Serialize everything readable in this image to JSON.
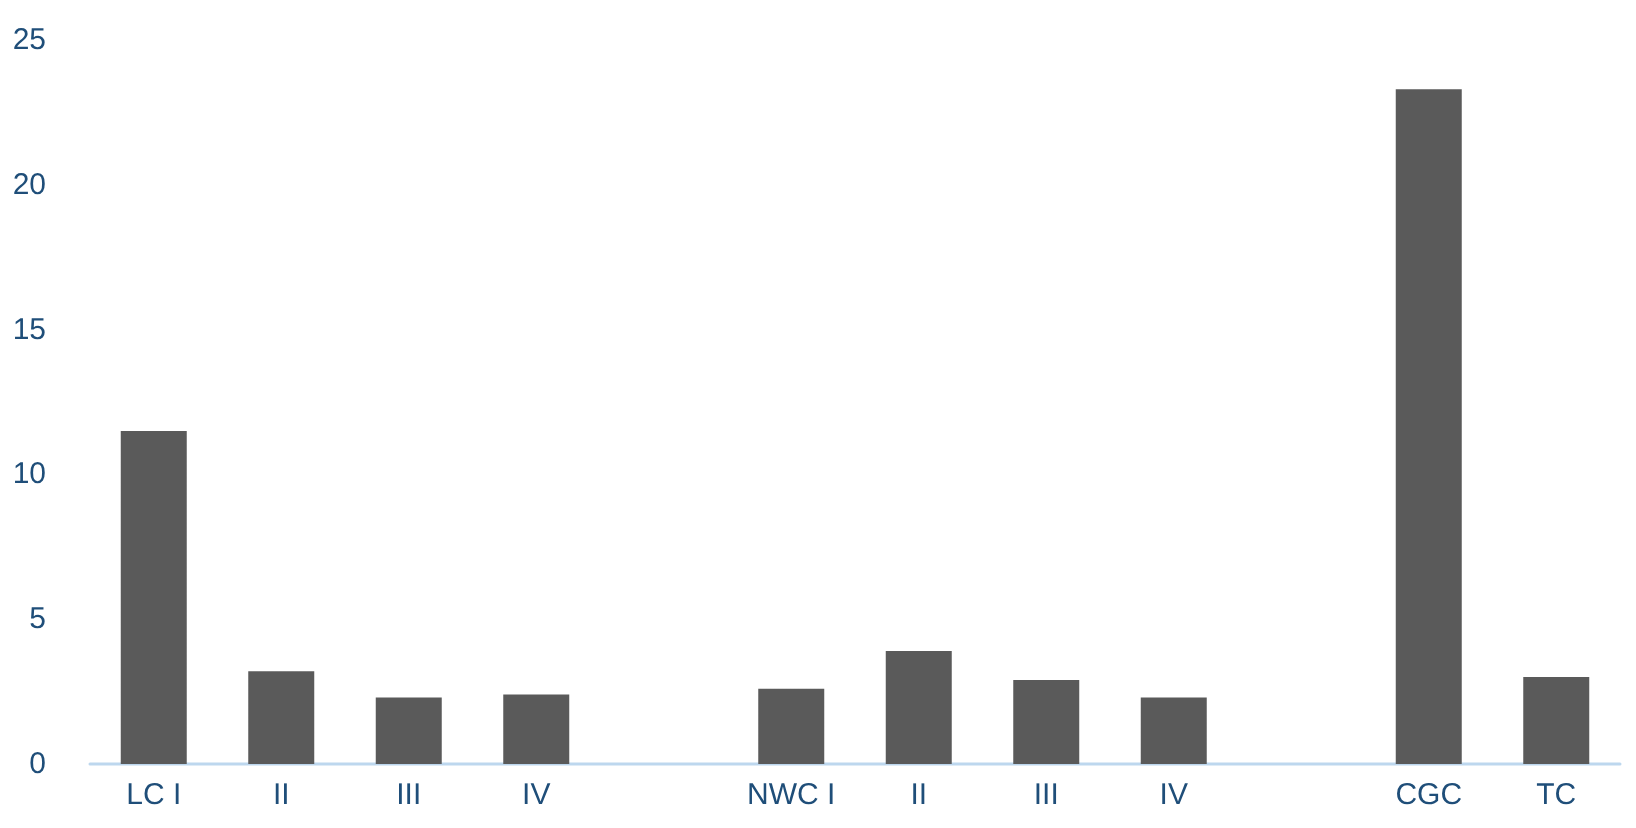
{
  "chart_data": {
    "type": "bar",
    "categories": [
      "LC I",
      "II",
      "III",
      "IV",
      null,
      "NWC I",
      "II",
      "III",
      "IV",
      null,
      "CGC",
      "TC"
    ],
    "values": [
      11.5,
      3.2,
      2.3,
      2.4,
      null,
      2.6,
      3.9,
      2.9,
      2.3,
      null,
      23.3,
      3.0
    ],
    "color": "#5a5a5a",
    "ylim": [
      0,
      25
    ],
    "yticks": [
      0,
      5,
      10,
      15,
      20,
      25
    ],
    "grid": false
  }
}
